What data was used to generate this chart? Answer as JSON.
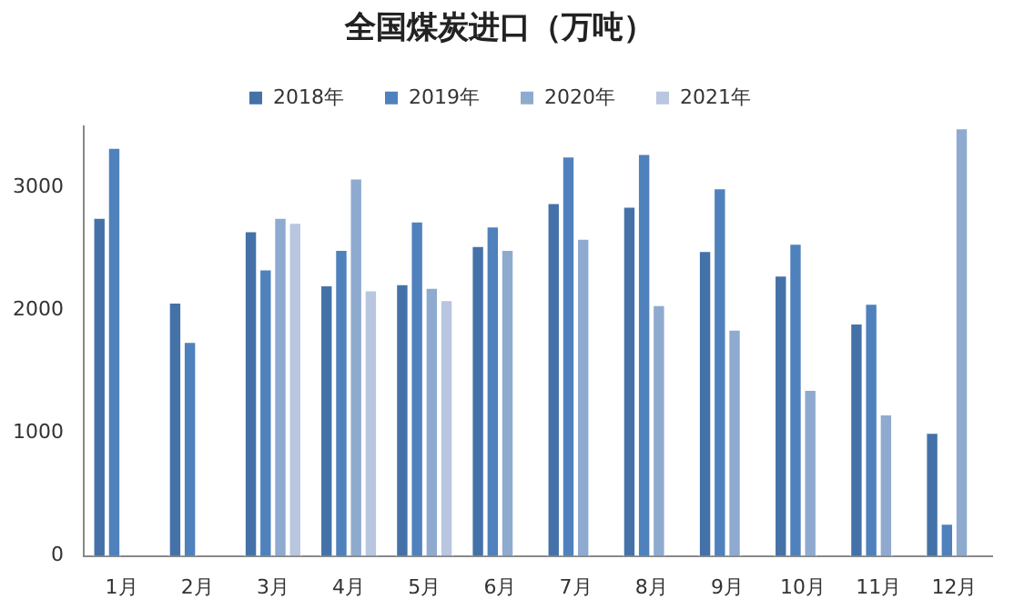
{
  "chart_data": {
    "type": "bar",
    "title": "全国煤炭进口（万吨）",
    "categories": [
      "1月",
      "2月",
      "3月",
      "4月",
      "5月",
      "6月",
      "7月",
      "8月",
      "9月",
      "10月",
      "11月",
      "12月"
    ],
    "series": [
      {
        "name": "2018年",
        "color": "#4472a8",
        "values": [
          2760,
          2070,
          2650,
          2210,
          2220,
          2530,
          2880,
          2850,
          2490,
          2290,
          1900,
          1010
        ]
      },
      {
        "name": "2019年",
        "color": "#4f81bd",
        "values": [
          3330,
          1750,
          2340,
          2500,
          2730,
          2690,
          3260,
          3280,
          3000,
          2550,
          2060,
          270
        ]
      },
      {
        "name": "2020年",
        "color": "#8faacf",
        "values": [
          null,
          null,
          2760,
          3080,
          2190,
          2500,
          2590,
          2050,
          1850,
          1360,
          1160,
          3490
        ]
      },
      {
        "name": "2021年",
        "color": "#b8c6df",
        "values": [
          null,
          null,
          2720,
          2170,
          2090,
          null,
          null,
          null,
          null,
          null,
          null,
          null
        ]
      }
    ],
    "ylim": [
      0,
      3500
    ],
    "yticks": [
      0,
      1000,
      2000,
      3000
    ],
    "grid": false,
    "legend": "top"
  }
}
